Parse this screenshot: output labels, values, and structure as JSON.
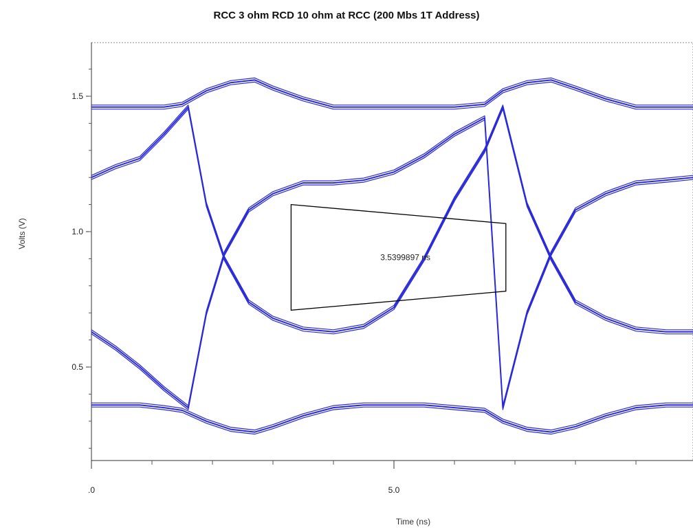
{
  "chart_data": {
    "type": "line",
    "title": "RCC 3 ohm RCD 10 ohm at RCC (200 Mbs 1T Address)",
    "xlabel": "Time (ns)",
    "ylabel": "Volts (V)",
    "xlim": [
      0,
      10
    ],
    "ylim": [
      0.15,
      1.65
    ],
    "x_tick_labels": [
      ".0",
      "5.0"
    ],
    "x_tick_values": [
      0,
      5
    ],
    "y_tick_labels": [
      "0.5",
      "1.0",
      "1.5"
    ],
    "y_tick_values": [
      0.5,
      1.0,
      1.5
    ],
    "grid": false,
    "series_color": "#2a2ad8",
    "levels": {
      "high": 1.46,
      "low": 0.35
    },
    "eye_crossings_ns": [
      1.6,
      6.6
    ],
    "series": [
      {
        "x": [
          0,
          0.4,
          0.8,
          1.2,
          1.5,
          1.9,
          2.3,
          2.7,
          3.0,
          3.5,
          4.0,
          4.5,
          5.0,
          5.5,
          6.0,
          6.5,
          6.8,
          7.2,
          7.6,
          8.0,
          8.5,
          9.0,
          9.5,
          10.0
        ],
        "y": [
          1.46,
          1.46,
          1.46,
          1.46,
          1.47,
          1.52,
          1.55,
          1.56,
          1.53,
          1.49,
          1.46,
          1.46,
          1.46,
          1.46,
          1.46,
          1.47,
          1.52,
          1.55,
          1.56,
          1.53,
          1.49,
          1.46,
          1.46,
          1.46
        ]
      },
      {
        "x": [
          0,
          0.4,
          0.8,
          1.2,
          1.5,
          1.9,
          2.3,
          2.7,
          3.0,
          3.5,
          4.0,
          4.5,
          5.0,
          5.5,
          6.0,
          6.5,
          6.8,
          7.2,
          7.6,
          8.0,
          8.5,
          9.0,
          9.5,
          10.0
        ],
        "y": [
          0.36,
          0.36,
          0.36,
          0.35,
          0.34,
          0.3,
          0.27,
          0.26,
          0.28,
          0.32,
          0.35,
          0.36,
          0.36,
          0.36,
          0.35,
          0.34,
          0.3,
          0.27,
          0.26,
          0.28,
          0.32,
          0.35,
          0.36,
          0.36
        ]
      },
      {
        "x": [
          0,
          0.4,
          0.8,
          1.2,
          1.6,
          1.9,
          2.2,
          2.6,
          3.0,
          3.5,
          4.0,
          4.5,
          5.0,
          5.5,
          6.0,
          6.5,
          6.8,
          7.2,
          7.6,
          8.0,
          8.5,
          9.0,
          9.5,
          10.0
        ],
        "y": [
          1.2,
          1.24,
          1.27,
          1.36,
          1.46,
          1.1,
          0.9,
          0.74,
          0.68,
          0.64,
          0.63,
          0.65,
          0.72,
          0.9,
          1.12,
          1.3,
          1.46,
          1.1,
          0.9,
          0.74,
          0.68,
          0.64,
          0.63,
          0.63
        ]
      },
      {
        "x": [
          0,
          0.4,
          0.8,
          1.2,
          1.6,
          1.9,
          2.2,
          2.6,
          3.0,
          3.5,
          4.0,
          4.5,
          5.0,
          5.5,
          6.0,
          6.5,
          6.8,
          7.2,
          7.6,
          8.0,
          8.5,
          9.0,
          9.5,
          10.0
        ],
        "y": [
          0.63,
          0.57,
          0.5,
          0.42,
          0.35,
          0.7,
          0.92,
          1.08,
          1.14,
          1.18,
          1.18,
          1.19,
          1.22,
          1.28,
          1.36,
          1.42,
          0.35,
          0.7,
          0.92,
          1.08,
          1.14,
          1.18,
          1.19,
          1.2
        ]
      }
    ],
    "annotation": {
      "text": "3.5399897 ns",
      "polygon": [
        [
          3.3,
          1.1
        ],
        [
          6.85,
          1.03
        ],
        [
          6.85,
          0.78
        ],
        [
          3.3,
          0.71
        ]
      ]
    }
  }
}
